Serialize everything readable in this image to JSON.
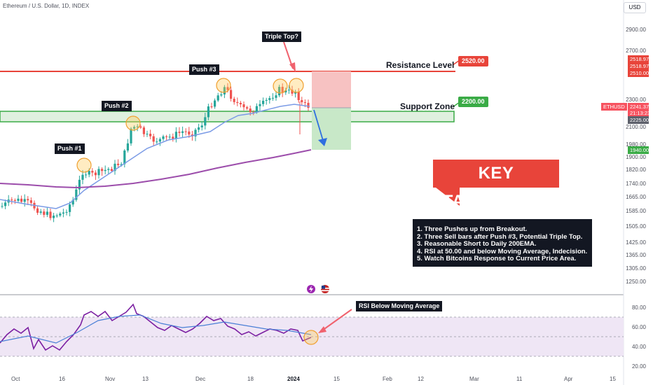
{
  "header": {
    "symbol_title": "Ethereum / U.S. Dollar, 1D, INDEX",
    "currency_button": "USD"
  },
  "annotations": {
    "push1": "Push #1",
    "push2": "Push #2",
    "push3": "Push #3",
    "triple_top": "Triple Top?",
    "resistance_label": "Resistance Level",
    "resistance_value": "2520.00",
    "support_label": "Support Zone",
    "support_value": "2200.00",
    "ema_value": "1940.00",
    "rsi_note": "RSI Below Moving Average"
  },
  "takeaways": {
    "title": "KEY TAKEAWAYS",
    "items": [
      "1. Three Pushes up from Breakout.",
      "2. Three Sell bars after Push #3, Potential Triple Top.",
      "3. Reasonable Short to Daily 200EMA.",
      "4. RSI at 50.00 and below Moving Average, Indecision.",
      "5. Watch Bitcoins Response to Current Price Area."
    ]
  },
  "price_scale": {
    "ticks": [
      "2900.00",
      "2700.00",
      "2300.00",
      "2100.00",
      "1980.00",
      "1900.00",
      "1820.00",
      "1740.00",
      "1665.00",
      "1585.00",
      "1505.00",
      "1425.00",
      "1365.00",
      "1305.00",
      "1250.00"
    ],
    "flags": {
      "r1": "2518.97",
      "r2": "2518.97",
      "r3": "2510.00",
      "last": "2241.37",
      "countdown": "21:13:23",
      "support_low": "2225.00",
      "ema": "1940.00"
    },
    "symbol_tag": "ETHUSD"
  },
  "rsi_scale": [
    "80.00",
    "60.00",
    "40.00",
    "20.00"
  ],
  "time_axis": [
    "Oct",
    "16",
    "Nov",
    "13",
    "Dec",
    "18",
    "2024",
    "15",
    "Feb",
    "12",
    "Mar",
    "11",
    "Apr",
    "15"
  ],
  "colors": {
    "up": "#26a69a",
    "down": "#ef5350",
    "resistance": "#e8443a",
    "support": "#3aab46",
    "ema_fast": "#7b9be6",
    "ema_slow": "#9c4dab",
    "rsi": "#7b1fa2"
  }
}
